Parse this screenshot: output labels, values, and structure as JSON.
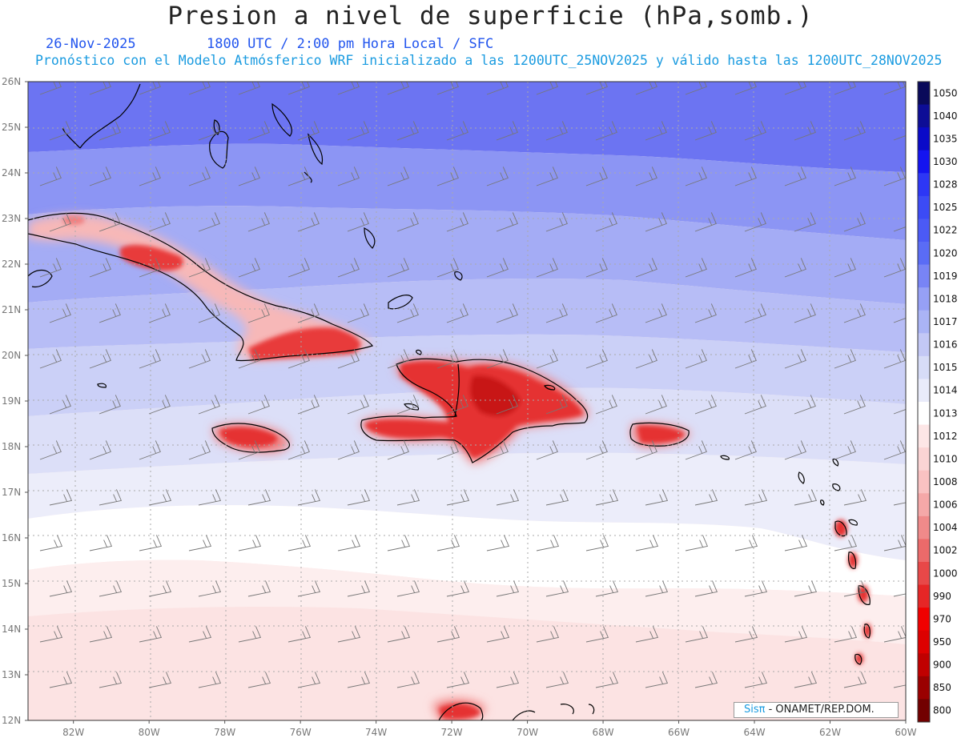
{
  "header": {
    "title": "Presion a nivel de superficie (hPa,somb.)",
    "date": "26-Nov-2025",
    "time_info": "1800 UTC / 2:00 pm Hora Local / SFC",
    "model_info": "Pronóstico con el Modelo Atmósferico WRF inicializado a las 1200UTC_25NOV2025 y válido hasta las  1200UTC_28NOV2025"
  },
  "map": {
    "lat_labels": [
      "26N",
      "25N",
      "24N",
      "23N",
      "22N",
      "21N",
      "20N",
      "19N",
      "18N",
      "17N",
      "16N",
      "15N",
      "14N",
      "13N",
      "12N"
    ],
    "lon_labels": [
      "82W",
      "80W",
      "78W",
      "76W",
      "74W",
      "72W",
      "70W",
      "68W",
      "66W",
      "64W",
      "62W",
      "60W"
    ],
    "lat_range": [
      12,
      26
    ],
    "lon_range": [
      -83.2,
      -60
    ]
  },
  "colorbar": {
    "levels": [
      "1050",
      "1040",
      "1035",
      "1030",
      "1028",
      "1025",
      "1022",
      "1020",
      "1019",
      "1018",
      "1017",
      "1016",
      "1015",
      "1014",
      "1013",
      "1012",
      "1010",
      "1008",
      "1006",
      "1004",
      "1002",
      "1000",
      "990",
      "970",
      "950",
      "900",
      "850",
      "800"
    ],
    "colors": [
      "#0a0a5a",
      "#0d0d96",
      "#0a0ac8",
      "#1414f0",
      "#2d37f5",
      "#3c4bf5",
      "#4b5af5",
      "#5a6cf5",
      "#7884f5",
      "#96a0f5",
      "#aab4f5",
      "#c3c8f5",
      "#d7dcf7",
      "#e9ebfa",
      "#ffffff",
      "#fde6e6",
      "#fbd4d4",
      "#f9c2c2",
      "#f5a8a8",
      "#f08a8a",
      "#ec6a6a",
      "#e84848",
      "#e62626",
      "#f00000",
      "#dd0000",
      "#c00000",
      "#9a0000",
      "#720000"
    ]
  },
  "credit": {
    "brand": "Sisπ",
    "text": " - ONAMET/REP.DOM."
  }
}
